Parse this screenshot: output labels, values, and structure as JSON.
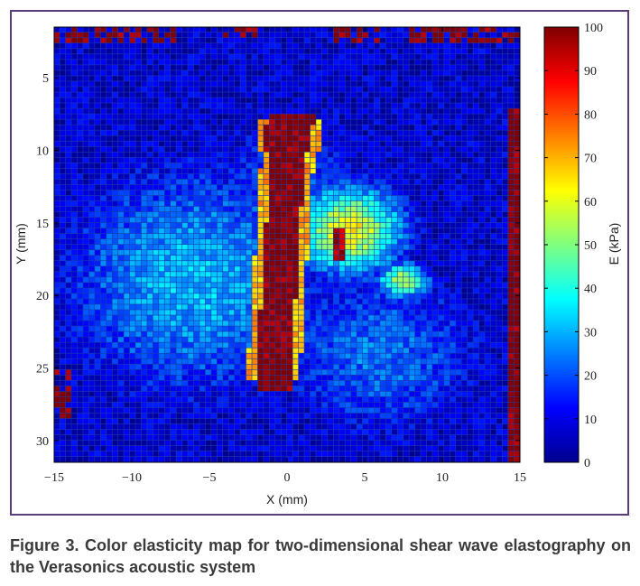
{
  "chart_data": {
    "type": "heatmap",
    "xlabel": "X (mm)",
    "ylabel": "Y (mm)",
    "xlim": [
      -15,
      15
    ],
    "ylim": [
      1.5,
      31.5
    ],
    "y_inverted": true,
    "xticks": [
      -15,
      -10,
      -5,
      0,
      5,
      10,
      15
    ],
    "xtick_labels": [
      "−15",
      "−10",
      "−5",
      "0",
      "5",
      "10",
      "15"
    ],
    "yticks": [
      5,
      10,
      15,
      20,
      25,
      30
    ],
    "ytick_labels": [
      "5",
      "10",
      "15",
      "20",
      "25",
      "30"
    ],
    "colorbar": {
      "label": "E (kPa)",
      "range": [
        0,
        100
      ],
      "ticks": [
        0,
        10,
        20,
        30,
        40,
        50,
        60,
        70,
        80,
        90,
        100
      ],
      "tick_labels": [
        "0",
        "10",
        "20",
        "30",
        "40",
        "50",
        "60",
        "70",
        "80",
        "90",
        "100"
      ],
      "colormap": "jet",
      "stops": [
        "#00008f",
        "#0000ff",
        "#00ffff",
        "#ffff00",
        "#ff0000",
        "#800000"
      ]
    },
    "grid": "cell-grid",
    "regions": [
      {
        "feature": "background tissue",
        "approx_E_kPa": 8
      },
      {
        "feature": "left soft tissue lobe",
        "approx_E_kPa": 30
      },
      {
        "feature": "right soft tissue lobe",
        "approx_E_kPa": 24
      },
      {
        "feature": "stiff vertical inclusion",
        "approx_E_kPa": 100,
        "x_range": [
          -1.5,
          1.2
        ],
        "y_range": [
          7.5,
          26.5
        ]
      },
      {
        "feature": "yellow halo around inclusion",
        "approx_E_kPa": 62,
        "x_range": [
          1,
          7.5
        ],
        "y_range": [
          12,
          19
        ]
      },
      {
        "feature": "right edge column",
        "approx_E_kPa": 100,
        "x_range": [
          14.2,
          15
        ],
        "y_range": [
          7,
          31.5
        ]
      },
      {
        "feature": "top edge strip",
        "approx_E_kPa": 100,
        "x_range": [
          -15,
          15
        ],
        "y_range": [
          1.5,
          3
        ]
      }
    ]
  },
  "caption": {
    "text": "Figure 3. Color elasticity map for two-dimensional shear wave elastography on the Verasonics acoustic system"
  }
}
